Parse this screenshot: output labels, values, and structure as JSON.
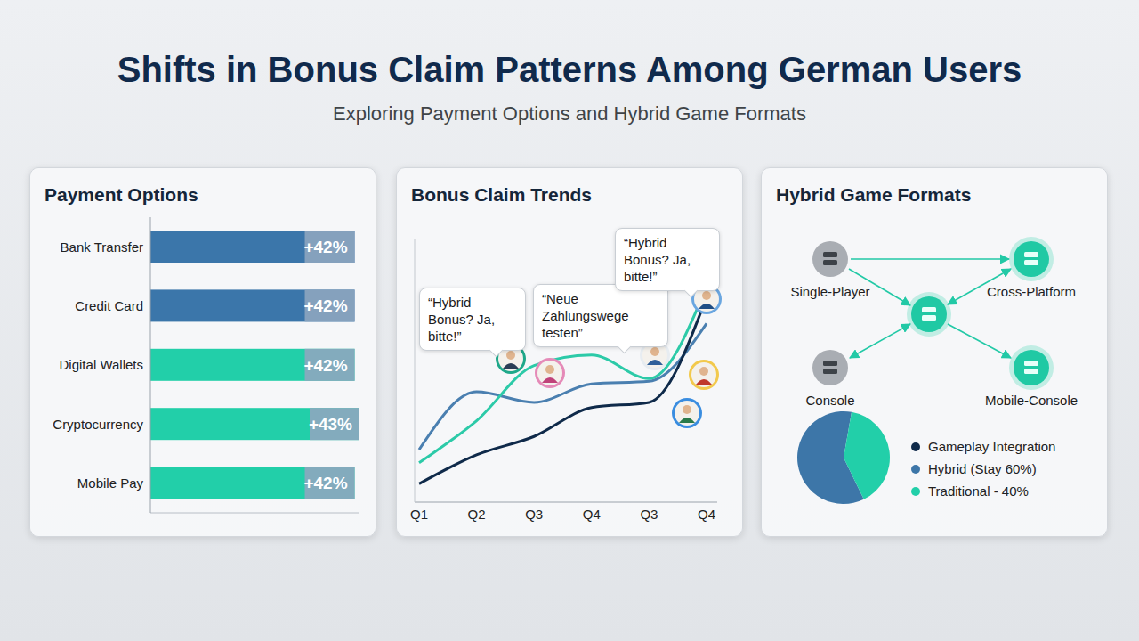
{
  "title": "Shifts in Bonus Claim Patterns Among German Users",
  "subtitle": "Exploring Payment Options and Hybrid Game Formats",
  "chart_data": [
    {
      "type": "bar",
      "title": "Payment Options",
      "orientation": "horizontal",
      "categories": [
        "Bank Transfer",
        "Credit Card",
        "Digital Wallets",
        "Cryptocurrency",
        "Mobile Pay"
      ],
      "values": [
        42,
        42,
        42,
        43,
        42
      ],
      "value_labels": [
        "+42%",
        "+42%",
        "+42%",
        "+43%",
        "+42%"
      ],
      "colors": [
        "#3b76aa",
        "#3b76aa",
        "#22cfa9",
        "#22cfa9",
        "#22cfa9"
      ],
      "xlim": [
        0,
        43
      ],
      "xticks": [],
      "data_labels": true,
      "tick_labels": "y",
      "grid": false
    },
    {
      "type": "line",
      "title": "Bonus Claim Trends",
      "categories": [
        "Q1",
        "Q2",
        "Q3",
        "Q4",
        "Q3",
        "Q4"
      ],
      "series": [
        {
          "color": "#4a7fb0",
          "values": [
            20,
            42,
            38,
            45,
            46,
            68
          ]
        },
        {
          "color": "#2ccaa8",
          "values": [
            15,
            31,
            52,
            56,
            47,
            82
          ]
        },
        {
          "color": "#0f2a4a",
          "values": [
            7,
            18,
            25,
            36,
            38,
            78
          ]
        }
      ],
      "ylim": [
        0,
        100
      ],
      "yticks": [],
      "tick_labels": "x",
      "grid": false,
      "annotations": [
        "“Hybrid Bonus? Ja, bitte!”",
        "“Neue Zahlungswege testen”",
        "“Hybrid Bonus? Ja, bitte!”"
      ]
    },
    {
      "type": "pie",
      "title": "Hybrid Game Formats",
      "categories": [
        "Gameplay Integration",
        "Hybrid (Stay 60%)",
        "Traditional - 40%"
      ],
      "values": [
        null,
        60,
        40
      ],
      "colors": [
        "#0f2a4a",
        "#3d76a8",
        "#22cfa9"
      ],
      "legend": "right"
    }
  ],
  "diagram": {
    "nodes": [
      "Single-Player",
      "Console",
      "Cross-Platform",
      "Mobile-Console"
    ]
  }
}
